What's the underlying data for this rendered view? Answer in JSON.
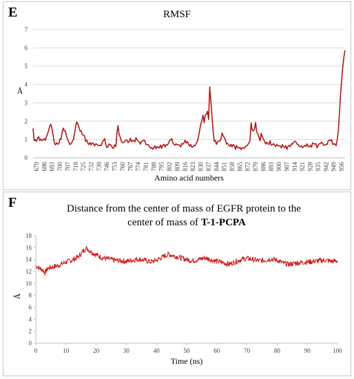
{
  "colors": {
    "series": "#b01818",
    "series_f": "#d01010",
    "grid": "#d9d9d9",
    "axis": "#bfbfbf"
  },
  "panel_e": {
    "letter": "E",
    "chart_data": {
      "type": "line",
      "title": "RMSF",
      "xlabel": "Amino acid numbers",
      "ylabel": "Å",
      "ylim": [
        0,
        7
      ],
      "yticks": [
        0,
        1,
        2,
        3,
        4,
        5,
        6,
        7
      ],
      "xticks": [
        "679",
        "686",
        "693",
        "700",
        "707",
        "718",
        "725",
        "732",
        "739",
        "746",
        "753",
        "760",
        "767",
        "774",
        "781",
        "788",
        "795",
        "802",
        "809",
        "816",
        "823",
        "830",
        "837",
        "844",
        "851",
        "858",
        "865",
        "872",
        "879",
        "886",
        "893",
        "900",
        "907",
        "914",
        "921",
        "928",
        "935",
        "942",
        "949",
        "956"
      ],
      "x_range": [
        679,
        958
      ],
      "grid": "horizontal",
      "keypoints": [
        [
          679,
          1.6
        ],
        [
          680,
          1.0
        ],
        [
          681,
          0.9
        ],
        [
          683,
          1.05
        ],
        [
          684,
          1.1
        ],
        [
          686,
          0.95
        ],
        [
          688,
          1.0
        ],
        [
          690,
          1.0
        ],
        [
          692,
          1.3
        ],
        [
          694,
          1.75
        ],
        [
          695,
          1.8
        ],
        [
          696,
          1.6
        ],
        [
          698,
          0.8
        ],
        [
          700,
          0.75
        ],
        [
          702,
          0.8
        ],
        [
          704,
          1.1
        ],
        [
          706,
          1.6
        ],
        [
          707,
          1.55
        ],
        [
          709,
          1.2
        ],
        [
          711,
          0.8
        ],
        [
          713,
          0.75
        ],
        [
          715,
          1.0
        ],
        [
          716,
          1.3
        ],
        [
          718,
          2.0
        ],
        [
          720,
          1.65
        ],
        [
          722,
          1.4
        ],
        [
          724,
          1.25
        ],
        [
          726,
          1.0
        ],
        [
          728,
          0.8
        ],
        [
          730,
          0.75
        ],
        [
          732,
          0.8
        ],
        [
          734,
          0.7
        ],
        [
          736,
          0.75
        ],
        [
          738,
          0.65
        ],
        [
          740,
          0.7
        ],
        [
          742,
          0.95
        ],
        [
          743,
          1.1
        ],
        [
          744,
          0.65
        ],
        [
          746,
          0.6
        ],
        [
          748,
          0.8
        ],
        [
          749,
          0.6
        ],
        [
          751,
          0.55
        ],
        [
          753,
          0.7
        ],
        [
          754,
          1.3
        ],
        [
          755,
          1.75
        ],
        [
          756,
          1.3
        ],
        [
          758,
          0.9
        ],
        [
          760,
          0.8
        ],
        [
          762,
          1.0
        ],
        [
          764,
          0.85
        ],
        [
          766,
          1.0
        ],
        [
          768,
          0.9
        ],
        [
          770,
          0.95
        ],
        [
          772,
          1.05
        ],
        [
          774,
          0.8
        ],
        [
          776,
          0.85
        ],
        [
          778,
          1.0
        ],
        [
          780,
          0.75
        ],
        [
          782,
          0.7
        ],
        [
          784,
          0.55
        ],
        [
          786,
          0.5
        ],
        [
          788,
          0.6
        ],
        [
          790,
          0.55
        ],
        [
          792,
          0.6
        ],
        [
          794,
          0.6
        ],
        [
          796,
          0.7
        ],
        [
          798,
          0.65
        ],
        [
          800,
          0.8
        ],
        [
          802,
          1.0
        ],
        [
          803,
          1.05
        ],
        [
          804,
          0.8
        ],
        [
          806,
          0.7
        ],
        [
          808,
          0.75
        ],
        [
          810,
          0.65
        ],
        [
          812,
          0.7
        ],
        [
          814,
          0.85
        ],
        [
          816,
          0.9
        ],
        [
          818,
          0.75
        ],
        [
          820,
          0.65
        ],
        [
          822,
          0.6
        ],
        [
          824,
          0.7
        ],
        [
          826,
          0.9
        ],
        [
          828,
          1.5
        ],
        [
          830,
          2.1
        ],
        [
          831,
          2.3
        ],
        [
          832,
          1.9
        ],
        [
          833,
          2.4
        ],
        [
          834,
          2.3
        ],
        [
          835,
          2.6
        ],
        [
          836,
          2.1
        ],
        [
          837,
          3.8
        ],
        [
          838,
          3.2
        ],
        [
          839,
          2.2
        ],
        [
          840,
          1.5
        ],
        [
          841,
          0.95
        ],
        [
          843,
          0.8
        ],
        [
          845,
          0.9
        ],
        [
          847,
          1.0
        ],
        [
          848,
          1.35
        ],
        [
          850,
          1.1
        ],
        [
          852,
          0.8
        ],
        [
          854,
          0.7
        ],
        [
          856,
          0.65
        ],
        [
          858,
          0.7
        ],
        [
          860,
          0.55
        ],
        [
          862,
          0.6
        ],
        [
          864,
          0.5
        ],
        [
          866,
          0.5
        ],
        [
          868,
          0.55
        ],
        [
          870,
          0.65
        ],
        [
          872,
          0.8
        ],
        [
          873,
          0.95
        ],
        [
          874,
          1.95
        ],
        [
          875,
          1.45
        ],
        [
          876,
          1.5
        ],
        [
          877,
          1.6
        ],
        [
          878,
          1.85
        ],
        [
          879,
          1.5
        ],
        [
          880,
          1.25
        ],
        [
          882,
          1.0
        ],
        [
          883,
          1.25
        ],
        [
          884,
          1.2
        ],
        [
          886,
          0.85
        ],
        [
          888,
          0.8
        ],
        [
          890,
          0.75
        ],
        [
          891,
          0.9
        ],
        [
          892,
          0.7
        ],
        [
          894,
          0.75
        ],
        [
          896,
          0.65
        ],
        [
          898,
          0.7
        ],
        [
          900,
          0.6
        ],
        [
          902,
          0.65
        ],
        [
          904,
          0.6
        ],
        [
          906,
          0.55
        ],
        [
          908,
          0.65
        ],
        [
          910,
          0.7
        ],
        [
          912,
          0.85
        ],
        [
          914,
          0.9
        ],
        [
          915,
          0.75
        ],
        [
          917,
          0.65
        ],
        [
          919,
          0.6
        ],
        [
          921,
          0.6
        ],
        [
          923,
          0.7
        ],
        [
          925,
          0.65
        ],
        [
          927,
          0.6
        ],
        [
          929,
          0.75
        ],
        [
          931,
          0.8
        ],
        [
          933,
          0.6
        ],
        [
          935,
          0.75
        ],
        [
          937,
          0.85
        ],
        [
          939,
          0.7
        ],
        [
          941,
          0.7
        ],
        [
          943,
          0.9
        ],
        [
          945,
          1.0
        ],
        [
          947,
          0.8
        ],
        [
          949,
          0.7
        ],
        [
          950,
          0.75
        ],
        [
          951,
          0.9
        ],
        [
          952,
          1.5
        ],
        [
          953,
          2.5
        ],
        [
          954,
          3.4
        ],
        [
          955,
          4.3
        ],
        [
          956,
          5.0
        ],
        [
          957,
          5.5
        ],
        [
          958,
          5.9
        ]
      ]
    }
  },
  "panel_f": {
    "letter": "F",
    "chart_data": {
      "type": "line",
      "title_line1": "Distance from the center of mass of EGFR protein to the",
      "title_line2_prefix": "center of mass of ",
      "title_line2_bold": "T-1-PCPA",
      "xlabel": "Time (ns)",
      "ylabel": "Å",
      "xlim": [
        0,
        100
      ],
      "ylim": [
        0,
        18
      ],
      "xticks": [
        0,
        10,
        20,
        30,
        40,
        50,
        60,
        70,
        80,
        90,
        100
      ],
      "yticks": [
        0,
        2,
        4,
        6,
        8,
        10,
        12,
        14,
        16,
        18
      ],
      "grid": "none",
      "series": [
        {
          "keypoints": [
            [
              0,
              13.0
            ],
            [
              1,
              12.6
            ],
            [
              2,
              12.4
            ],
            [
              3,
              11.8
            ],
            [
              4,
              12.5
            ],
            [
              5,
              12.7
            ],
            [
              6,
              12.8
            ],
            [
              8,
              13.1
            ],
            [
              10,
              13.6
            ],
            [
              12,
              13.9
            ],
            [
              14,
              14.4
            ],
            [
              15,
              15.0
            ],
            [
              16,
              15.6
            ],
            [
              17,
              15.9
            ],
            [
              18,
              15.4
            ],
            [
              19,
              15.1
            ],
            [
              20,
              14.8
            ],
            [
              22,
              14.3
            ],
            [
              24,
              14.1
            ],
            [
              26,
              13.9
            ],
            [
              28,
              13.8
            ],
            [
              30,
              13.7
            ],
            [
              32,
              13.9
            ],
            [
              34,
              14.1
            ],
            [
              36,
              13.9
            ],
            [
              38,
              13.6
            ],
            [
              40,
              13.9
            ],
            [
              42,
              14.4
            ],
            [
              44,
              14.9
            ],
            [
              46,
              14.6
            ],
            [
              48,
              14.3
            ],
            [
              50,
              14.0
            ],
            [
              52,
              13.8
            ],
            [
              54,
              14.0
            ],
            [
              56,
              14.3
            ],
            [
              58,
              14.0
            ],
            [
              60,
              13.7
            ],
            [
              62,
              13.5
            ],
            [
              64,
              13.2
            ],
            [
              66,
              13.6
            ],
            [
              68,
              14.0
            ],
            [
              70,
              14.2
            ],
            [
              72,
              14.0
            ],
            [
              74,
              13.8
            ],
            [
              76,
              13.9
            ],
            [
              78,
              14.1
            ],
            [
              80,
              13.9
            ],
            [
              82,
              13.4
            ],
            [
              84,
              13.2
            ],
            [
              86,
              13.4
            ],
            [
              88,
              13.5
            ],
            [
              90,
              13.6
            ],
            [
              92,
              13.7
            ],
            [
              94,
              13.8
            ],
            [
              96,
              13.9
            ],
            [
              98,
              13.7
            ],
            [
              100,
              13.8
            ]
          ],
          "noise_amplitude": 0.45
        }
      ]
    }
  }
}
